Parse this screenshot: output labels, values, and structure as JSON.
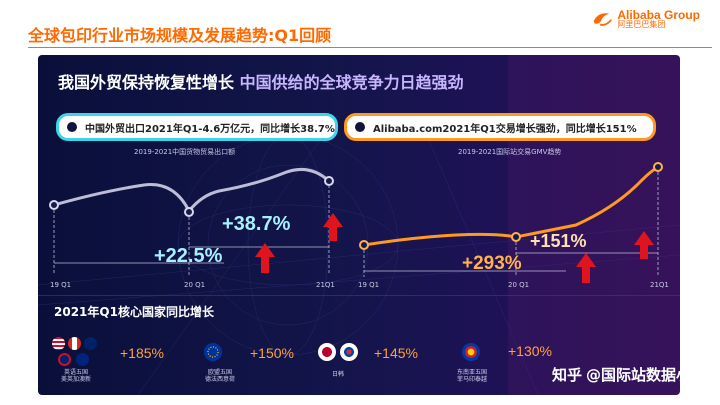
{
  "header": {
    "title": "全球包印行业市场规模及发展趋势:Q1回顾",
    "logo_en": "Alibaba Group",
    "logo_cn": "阿里巴巴集团"
  },
  "slide": {
    "headline_white": "我国外贸保持恢复性增长",
    "headline_accent": "中国供给的全球竞争力日趋强劲",
    "left_pill": "中国外贸出口2021年Q1-4.6万亿元，同比增长38.7%",
    "right_pill": "Alibaba.com2021年Q1交易增长强劲，同比增长151%",
    "left_chart": {
      "title": "2019-2021中国货物贸易出口额",
      "ticks": [
        "19 Q1",
        "20 Q1",
        "21Q1"
      ],
      "pct_small": "+38.7%",
      "pct_large": "+22.5%"
    },
    "right_chart": {
      "title": "2019-2021国际站交易GMV趋势",
      "ticks": [
        "19 Q1",
        "20 Q1",
        "21Q1"
      ],
      "pct_small": "+151%",
      "pct_large": "+293%"
    },
    "section_title": "2021年Q1核心国家同比增长",
    "countries": [
      {
        "value": "+185%",
        "caption": "英语五国\n美英加澳新"
      },
      {
        "value": "+150%",
        "caption": "欧盟五国\n德法西意荷"
      },
      {
        "value": "+145%",
        "caption": "日韩"
      },
      {
        "value": "+130%",
        "caption": "东南亚五国\n菲马印泰越"
      }
    ]
  },
  "watermark": {
    "brand": "知乎",
    "handle": "@国际站数据小二"
  },
  "colors": {
    "brand_orange": "#ff6a00",
    "cyan": "#3dd6e8",
    "orange_line": "#ff9a1f",
    "arrow_red": "#e0141e"
  }
}
